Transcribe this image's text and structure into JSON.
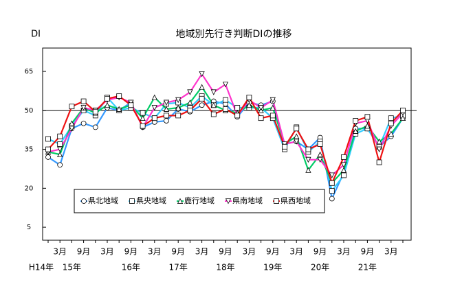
{
  "chart_data": {
    "type": "line",
    "title": "地域別先行き判断DIの推移",
    "y_label": "DI",
    "categories": [
      null,
      "3月",
      null,
      "9月",
      null,
      "3月",
      null,
      "9月",
      null,
      "3月",
      null,
      "9月",
      null,
      "3月",
      null,
      "9月",
      null,
      "3月",
      null,
      "9月",
      null,
      "3月",
      null,
      "9月",
      null,
      "3月",
      null,
      "9月",
      null,
      "3月",
      null
    ],
    "year_labels": [
      "H14年",
      null,
      "15年",
      null,
      null,
      null,
      null,
      "16年",
      null,
      null,
      null,
      "17年",
      null,
      null,
      null,
      "18年",
      null,
      null,
      null,
      "19年",
      null,
      null,
      null,
      "20年",
      null,
      null,
      null,
      "21年",
      null,
      null,
      null
    ],
    "ylim": [
      0,
      74
    ],
    "yticks": [
      5,
      20,
      35,
      50,
      65
    ],
    "reference_line": 50,
    "series": [
      {
        "name": "県北地域",
        "color": "#3399ff",
        "marker": "circle",
        "values": [
          32,
          29,
          43,
          45,
          43.5,
          51,
          50,
          53,
          43.5,
          45.5,
          46,
          50.5,
          49.5,
          52,
          53.5,
          52.5,
          47.5,
          53,
          52,
          53.5,
          37,
          38,
          35,
          39.5,
          16,
          26,
          43,
          43,
          36,
          40,
          47
        ]
      },
      {
        "name": "県央地域",
        "color": "#33ccff",
        "marker": "square",
        "values": [
          39,
          37,
          44,
          50,
          48,
          55,
          50,
          51,
          49,
          47,
          52.5,
          53,
          51,
          55.5,
          52,
          54,
          51,
          51,
          51,
          47,
          35,
          43.5,
          34,
          38,
          19,
          25,
          41,
          43,
          36,
          47,
          48
        ]
      },
      {
        "name": "鹿行地域",
        "color": "#00cc66",
        "marker": "triangle",
        "values": [
          34,
          33,
          45,
          51,
          49,
          52,
          50.5,
          52,
          47,
          55,
          50.5,
          51,
          53,
          59,
          52,
          50,
          49,
          52,
          50,
          51,
          37,
          40,
          27,
          33,
          22,
          27,
          42,
          44,
          38,
          41,
          47
        ]
      },
      {
        "name": "県南地域",
        "color": "#ff33cc",
        "marker": "triangle-down",
        "values": [
          34,
          35,
          43,
          51,
          50,
          54,
          55,
          53,
          43.5,
          51,
          53,
          54,
          57,
          64,
          57,
          60,
          48,
          54,
          51,
          54,
          37,
          38,
          31,
          31,
          25,
          29,
          45,
          46,
          35,
          44,
          49
        ]
      },
      {
        "name": "県西地域",
        "color": "#ee1111",
        "marker": "square",
        "values": [
          35,
          40,
          51.5,
          53.5,
          49.5,
          54.5,
          55.5,
          52,
          44,
          47,
          48,
          48,
          50,
          54.5,
          48.5,
          50.5,
          48,
          55,
          47,
          48,
          36,
          43,
          35,
          37,
          22,
          32,
          46,
          47.5,
          30,
          45,
          50
        ]
      }
    ]
  }
}
